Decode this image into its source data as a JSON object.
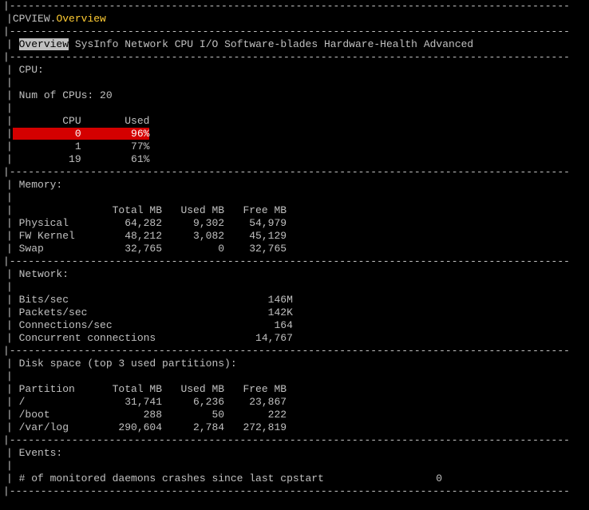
{
  "title": {
    "app": "CPVIEW",
    "crumb": "Overview"
  },
  "tabs": [
    "Overview",
    "SysInfo",
    "Network",
    "CPU",
    "I/O",
    "Software-blades",
    "Hardware-Health",
    "Advanced"
  ],
  "active_tab": 0,
  "colors": {
    "background": "#000000",
    "text": "#c0c0c0",
    "accent": "#ffcc33",
    "selected_bg": "#c0c0c0",
    "selected_fg": "#000000",
    "alert_bg": "#d40000",
    "alert_fg": "#ffffff"
  },
  "cpu": {
    "label": "CPU:",
    "count_label": "Num of CPUs:",
    "count": 20,
    "headers": [
      "CPU",
      "Used"
    ],
    "rows": [
      {
        "cpu": 0,
        "used": "96%",
        "hot": true
      },
      {
        "cpu": 1,
        "used": "77%",
        "hot": false
      },
      {
        "cpu": 19,
        "used": "61%",
        "hot": false
      }
    ]
  },
  "memory": {
    "label": "Memory:",
    "headers": [
      "",
      "Total MB",
      "Used MB",
      "Free MB"
    ],
    "rows": [
      {
        "k": "Physical",
        "total": "64,282",
        "used": "9,302",
        "free": "54,979"
      },
      {
        "k": "FW Kernel",
        "total": "48,212",
        "used": "3,082",
        "free": "45,129"
      },
      {
        "k": "Swap",
        "total": "32,765",
        "used": "0",
        "free": "32,765"
      }
    ]
  },
  "network": {
    "label": "Network:",
    "rows": [
      {
        "k": "Bits/sec",
        "v": "146M"
      },
      {
        "k": "Packets/sec",
        "v": "142K"
      },
      {
        "k": "Connections/sec",
        "v": "164"
      },
      {
        "k": "Concurrent connections",
        "v": "14,767"
      }
    ]
  },
  "disk": {
    "label": "Disk space (top 3 used partitions):",
    "headers": [
      "Partition",
      "Total MB",
      "Used MB",
      "Free MB"
    ],
    "rows": [
      {
        "k": "/",
        "total": "31,741",
        "used": "6,236",
        "free": "23,867"
      },
      {
        "k": "/boot",
        "total": "288",
        "used": "50",
        "free": "222"
      },
      {
        "k": "/var/log",
        "total": "290,604",
        "used": "2,784",
        "free": "272,819"
      }
    ]
  },
  "events": {
    "label": "Events:",
    "rows": [
      {
        "k": "# of monitored daemons crashes since last cpstart",
        "v": "0"
      }
    ]
  }
}
